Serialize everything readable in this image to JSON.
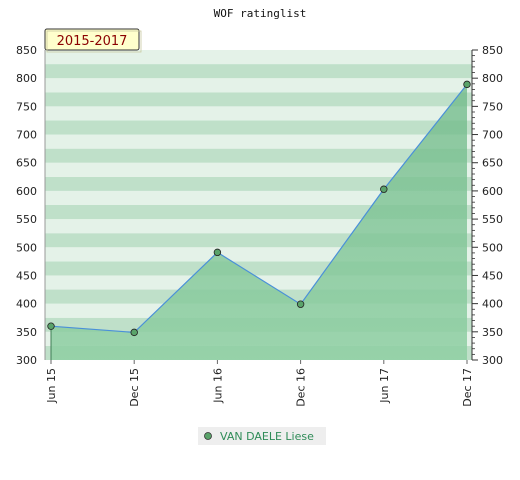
{
  "chart_data": {
    "type": "area",
    "title": "WOF ratinglist",
    "period_label": "2015-2017",
    "categories": [
      "Jun 15",
      "Dec 15",
      "Jun 16",
      "Dec 16",
      "Jun 17",
      "Dec 17"
    ],
    "series": [
      {
        "name": "VAN DAELE Liese",
        "values": [
          360,
          349,
          491,
          399,
          603,
          789
        ]
      }
    ],
    "ylim": [
      300,
      850
    ],
    "yticks": [
      300,
      350,
      400,
      450,
      500,
      550,
      600,
      650,
      700,
      750,
      800,
      850
    ],
    "xlabel": "",
    "ylabel": "",
    "grid": "horizontal bands",
    "legend": "bottom-center",
    "colors": {
      "line": "#4a90d9",
      "fill": "#6fbf8a",
      "marker": "#5aa36a",
      "band_dark": "#bfe0c9",
      "band_light": "#e4f2e8",
      "period_bg": "#ffffcc"
    }
  }
}
